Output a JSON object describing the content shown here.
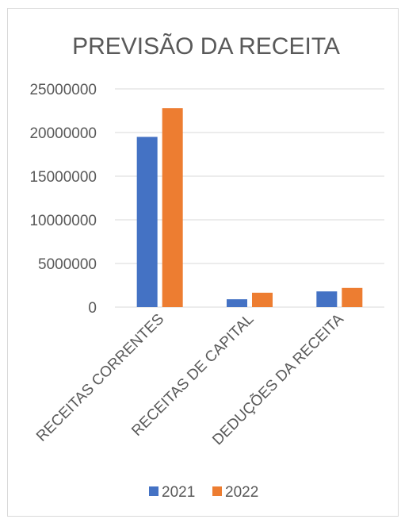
{
  "chart_data": {
    "type": "bar",
    "title": "PREVISÃO DA RECEITA",
    "xlabel": "",
    "ylabel": "",
    "categories": [
      "RECEITAS CORRENTES",
      "RECEITAS DE CAPITAL",
      "DEDUÇÕES DA RECEITA"
    ],
    "series": [
      {
        "name": "2021",
        "color": "#4472c4",
        "values": [
          19500000,
          900000,
          1800000
        ]
      },
      {
        "name": "2022",
        "color": "#ed7d31",
        "values": [
          22800000,
          1650000,
          2200000
        ]
      }
    ],
    "ylim": [
      0,
      25000000
    ],
    "yticks": [
      "0",
      "5000000",
      "10000000",
      "15000000",
      "20000000",
      "25000000"
    ],
    "grid": true,
    "legend_position": "bottom"
  }
}
